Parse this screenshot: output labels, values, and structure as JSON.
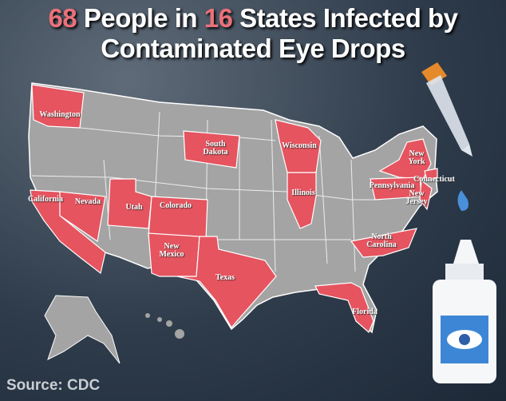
{
  "header": {
    "title_parts": [
      {
        "text": "68",
        "highlight": true
      },
      {
        "text": "People in",
        "highlight": false
      },
      {
        "text": "16",
        "highlight": true
      },
      {
        "text": "States Infected by",
        "highlight": false
      }
    ],
    "title_line2": "Contaminated Eye Drops"
  },
  "map": {
    "states": [
      {
        "lines": [
          "Washington"
        ]
      },
      {
        "lines": [
          "California"
        ]
      },
      {
        "lines": [
          "Nevada"
        ]
      },
      {
        "lines": [
          "Utah"
        ]
      },
      {
        "lines": [
          "Colorado"
        ]
      },
      {
        "lines": [
          "South",
          "Dakota"
        ]
      },
      {
        "lines": [
          "New",
          "Mexico"
        ]
      },
      {
        "lines": [
          "Texas"
        ]
      },
      {
        "lines": [
          "Wisconsin"
        ]
      },
      {
        "lines": [
          "Illinois"
        ]
      },
      {
        "lines": [
          "New",
          "York"
        ]
      },
      {
        "lines": [
          "Pennsylvania"
        ]
      },
      {
        "lines": [
          "Connecticut"
        ]
      },
      {
        "lines": [
          "New",
          "Jersey"
        ]
      },
      {
        "lines": [
          "North",
          "Carolina"
        ]
      },
      {
        "lines": [
          "Florida"
        ]
      }
    ]
  },
  "footer": {
    "source": "Source: CDC"
  }
}
